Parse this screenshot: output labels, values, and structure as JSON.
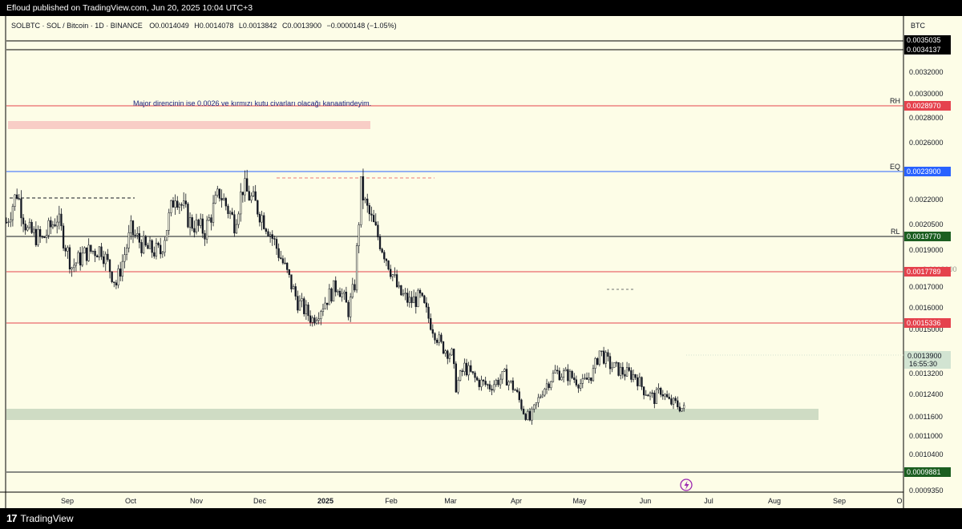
{
  "header": {
    "published": "Efloud published on TradingView.com, Jun 20, 2025 10:04 UTC+3"
  },
  "legend": {
    "symbol": "SOLBTC · SOL / Bitcoin · 1D · BINANCE",
    "open": "O0.0014049",
    "high": "H0.0014078",
    "low": "L0.0013842",
    "close": "C0.0013900",
    "change": "−0.0000148 (−1.05%)"
  },
  "price_axis": {
    "currency": "BTC",
    "ticks": [
      "0.0032000",
      "0.0030000",
      "0.0028000",
      "0.0026000",
      "0.0022000",
      "0.0020500",
      "0.0019000",
      "0.0018000",
      "0.0017000",
      "0.0016000",
      "0.0015000",
      "0.0013200",
      "0.0012400",
      "0.0011600",
      "0.0011000",
      "0.0010400",
      "0.0009350"
    ]
  },
  "time_axis": {
    "labels": [
      "Sep",
      "Oct",
      "Nov",
      "Dec",
      "2025",
      "Feb",
      "Mar",
      "Apr",
      "May",
      "Jun",
      "Jul",
      "Aug",
      "Sep",
      "O"
    ]
  },
  "annotation": {
    "text": "Major direncinin ise 0.0026 ve kırmızı kutu civarları olacağı kanaatindeyim."
  },
  "levels": [
    {
      "id": "top-a",
      "label": "",
      "value": "0.0035035",
      "color": "#000000"
    },
    {
      "id": "top-b",
      "label": "",
      "value": "0.0034137",
      "color": "#000000"
    },
    {
      "id": "rh",
      "label": "RH",
      "value": "0.0028970",
      "color": "#e5424d"
    },
    {
      "id": "eq",
      "label": "EQ",
      "value": "0.0023900",
      "color": "#2962ff"
    },
    {
      "id": "rl",
      "label": "RL",
      "value": "0.0019770",
      "color": "#1b5e20"
    },
    {
      "id": "red-1",
      "label": "",
      "value": "0.0017789",
      "color": "#e5424d"
    },
    {
      "id": "red-2",
      "label": "",
      "value": "0.0015336",
      "color": "#e5424d"
    },
    {
      "id": "bottom",
      "label": "",
      "value": "0.0009881",
      "color": "#1b5e20"
    }
  ],
  "current_price": {
    "value": "0.0013900",
    "countdown": "16:55:30",
    "color": "#d2e4d2"
  },
  "footer": {
    "brand": "TradingView",
    "logo": "17"
  },
  "chart_data": {
    "type": "candlestick",
    "symbol": "SOLBTC",
    "interval": "1D",
    "ylim": [
      0.00092,
      0.00362
    ],
    "x_range": [
      "2024-08-03",
      "2025-10-02"
    ],
    "series_close": [
      {
        "date": "2024-08-03",
        "close": 0.00245
      },
      {
        "date": "2024-08-08",
        "close": 0.00262
      },
      {
        "date": "2024-08-13",
        "close": 0.0024
      },
      {
        "date": "2024-08-20",
        "close": 0.00235
      },
      {
        "date": "2024-08-27",
        "close": 0.00248
      },
      {
        "date": "2024-09-03",
        "close": 0.0022
      },
      {
        "date": "2024-09-10",
        "close": 0.00228
      },
      {
        "date": "2024-09-17",
        "close": 0.0023
      },
      {
        "date": "2024-09-24",
        "close": 0.0021
      },
      {
        "date": "2024-10-01",
        "close": 0.0024
      },
      {
        "date": "2024-10-08",
        "close": 0.0023
      },
      {
        "date": "2024-10-15",
        "close": 0.00228
      },
      {
        "date": "2024-10-22",
        "close": 0.00262
      },
      {
        "date": "2024-10-29",
        "close": 0.00245
      },
      {
        "date": "2024-11-05",
        "close": 0.0024
      },
      {
        "date": "2024-11-12",
        "close": 0.00262
      },
      {
        "date": "2024-11-19",
        "close": 0.00245
      },
      {
        "date": "2024-11-23",
        "close": 0.00265
      },
      {
        "date": "2024-11-29",
        "close": 0.00255
      },
      {
        "date": "2024-12-05",
        "close": 0.00242
      },
      {
        "date": "2024-12-12",
        "close": 0.00222
      },
      {
        "date": "2024-12-19",
        "close": 0.002
      },
      {
        "date": "2024-12-26",
        "close": 0.0019
      },
      {
        "date": "2025-01-02",
        "close": 0.00202
      },
      {
        "date": "2025-01-07",
        "close": 0.0021
      },
      {
        "date": "2025-01-12",
        "close": 0.00195
      },
      {
        "date": "2025-01-15",
        "close": 0.0021
      },
      {
        "date": "2025-01-18",
        "close": 0.00265
      },
      {
        "date": "2025-01-20",
        "close": 0.00255
      },
      {
        "date": "2025-01-25",
        "close": 0.0024
      },
      {
        "date": "2025-01-31",
        "close": 0.00222
      },
      {
        "date": "2025-02-05",
        "close": 0.00205
      },
      {
        "date": "2025-02-10",
        "close": 0.002
      },
      {
        "date": "2025-02-15",
        "close": 0.00202
      },
      {
        "date": "2025-02-20",
        "close": 0.00188
      },
      {
        "date": "2025-02-25",
        "close": 0.00175
      },
      {
        "date": "2025-03-02",
        "close": 0.0017
      },
      {
        "date": "2025-03-04",
        "close": 0.00152
      },
      {
        "date": "2025-03-08",
        "close": 0.00163
      },
      {
        "date": "2025-03-14",
        "close": 0.00155
      },
      {
        "date": "2025-03-20",
        "close": 0.00152
      },
      {
        "date": "2025-03-27",
        "close": 0.00158
      },
      {
        "date": "2025-04-01",
        "close": 0.0015
      },
      {
        "date": "2025-04-05",
        "close": 0.00138
      },
      {
        "date": "2025-04-08",
        "close": 0.00133
      },
      {
        "date": "2025-04-14",
        "close": 0.0015
      },
      {
        "date": "2025-04-20",
        "close": 0.0016
      },
      {
        "date": "2025-04-27",
        "close": 0.00158
      },
      {
        "date": "2025-05-03",
        "close": 0.00153
      },
      {
        "date": "2025-05-08",
        "close": 0.0016
      },
      {
        "date": "2025-05-11",
        "close": 0.00172
      },
      {
        "date": "2025-05-16",
        "close": 0.00164
      },
      {
        "date": "2025-05-22",
        "close": 0.0016
      },
      {
        "date": "2025-05-28",
        "close": 0.00158
      },
      {
        "date": "2025-06-01",
        "close": 0.0015
      },
      {
        "date": "2025-06-06",
        "close": 0.00145
      },
      {
        "date": "2025-06-09",
        "close": 0.0015
      },
      {
        "date": "2025-06-13",
        "close": 0.00143
      },
      {
        "date": "2025-06-16",
        "close": 0.00142
      },
      {
        "date": "2025-06-20",
        "close": 0.00139
      }
    ]
  }
}
